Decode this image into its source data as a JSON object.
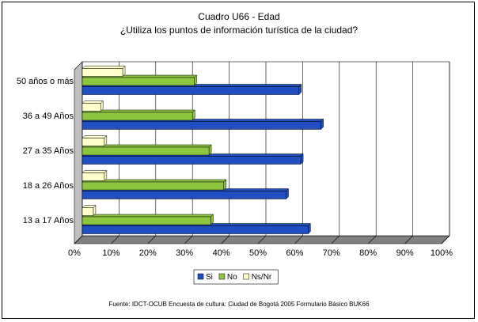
{
  "chart_data": {
    "type": "bar",
    "orientation": "horizontal",
    "title": "Cuadro U66 - Edad",
    "subtitle": "¿Utiliza los puntos de información turística de la ciudad?",
    "categories": [
      "50 años o más",
      "36 a 49 Años",
      "27 a 35 Años",
      "18 a 26 Años",
      "13 a 17 Años"
    ],
    "series": [
      {
        "name": "Si",
        "color": "#1f4fc0",
        "values": [
          59.0,
          65.0,
          59.5,
          55.5,
          61.5
        ]
      },
      {
        "name": "No",
        "color": "#8dc63f",
        "values": [
          30.5,
          30.0,
          34.5,
          38.5,
          35.0
        ]
      },
      {
        "name": "Ns/Nr",
        "color": "#ffffcc",
        "values": [
          11.0,
          5.0,
          6.0,
          6.0,
          3.0
        ]
      }
    ],
    "xlim": [
      0,
      100
    ],
    "xticks": [
      "0%",
      "10%",
      "20%",
      "30%",
      "40%",
      "50%",
      "60%",
      "70%",
      "80%",
      "90%",
      "100%"
    ],
    "grid": true,
    "legend_position": "bottom"
  },
  "source": "Fuente: IDCT-OCUB Encuesta de cultura: Ciudad de Bogotá 2005 Formulario Básico BUK66"
}
